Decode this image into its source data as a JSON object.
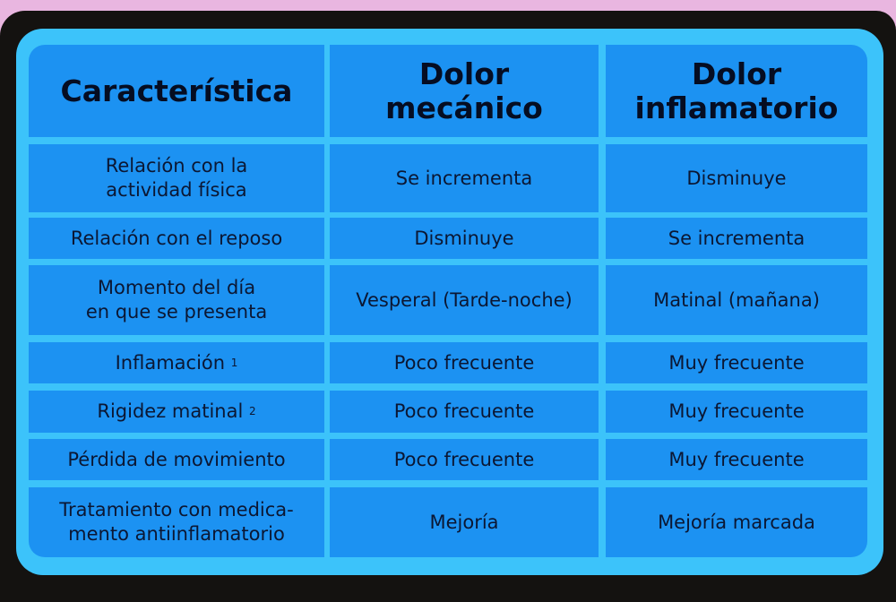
{
  "colors": {
    "cell": "#1c92f2",
    "grid": "#3cc3fa",
    "frame": "#141210",
    "text": "#0b1733"
  },
  "headers": [
    "Característica",
    "Dolor\nmecánico",
    "Dolor\ninflamatorio"
  ],
  "rows": [
    {
      "feature": "Relación con la\nactividad física",
      "mecanico": "Se incrementa",
      "inflamatorio": "Disminuye"
    },
    {
      "feature": "Relación con el reposo",
      "mecanico": "Disminuye",
      "inflamatorio": "Se incrementa"
    },
    {
      "feature": "Momento del día\nen que se presenta",
      "mecanico": "Vesperal (Tarde-noche)",
      "inflamatorio": "Matinal (mañana)"
    },
    {
      "feature": "Inflamación",
      "note": "1",
      "mecanico": "Poco frecuente",
      "inflamatorio": "Muy frecuente"
    },
    {
      "feature": "Rigidez matinal",
      "note": "2",
      "mecanico": "Poco frecuente",
      "inflamatorio": "Muy frecuente"
    },
    {
      "feature": "Pérdida de movimiento",
      "mecanico": "Poco frecuente",
      "inflamatorio": "Muy frecuente"
    },
    {
      "feature": "Tratamiento con medica-\nmento antiinflamatorio",
      "mecanico": "Mejoría",
      "inflamatorio": "Mejoría marcada"
    }
  ]
}
